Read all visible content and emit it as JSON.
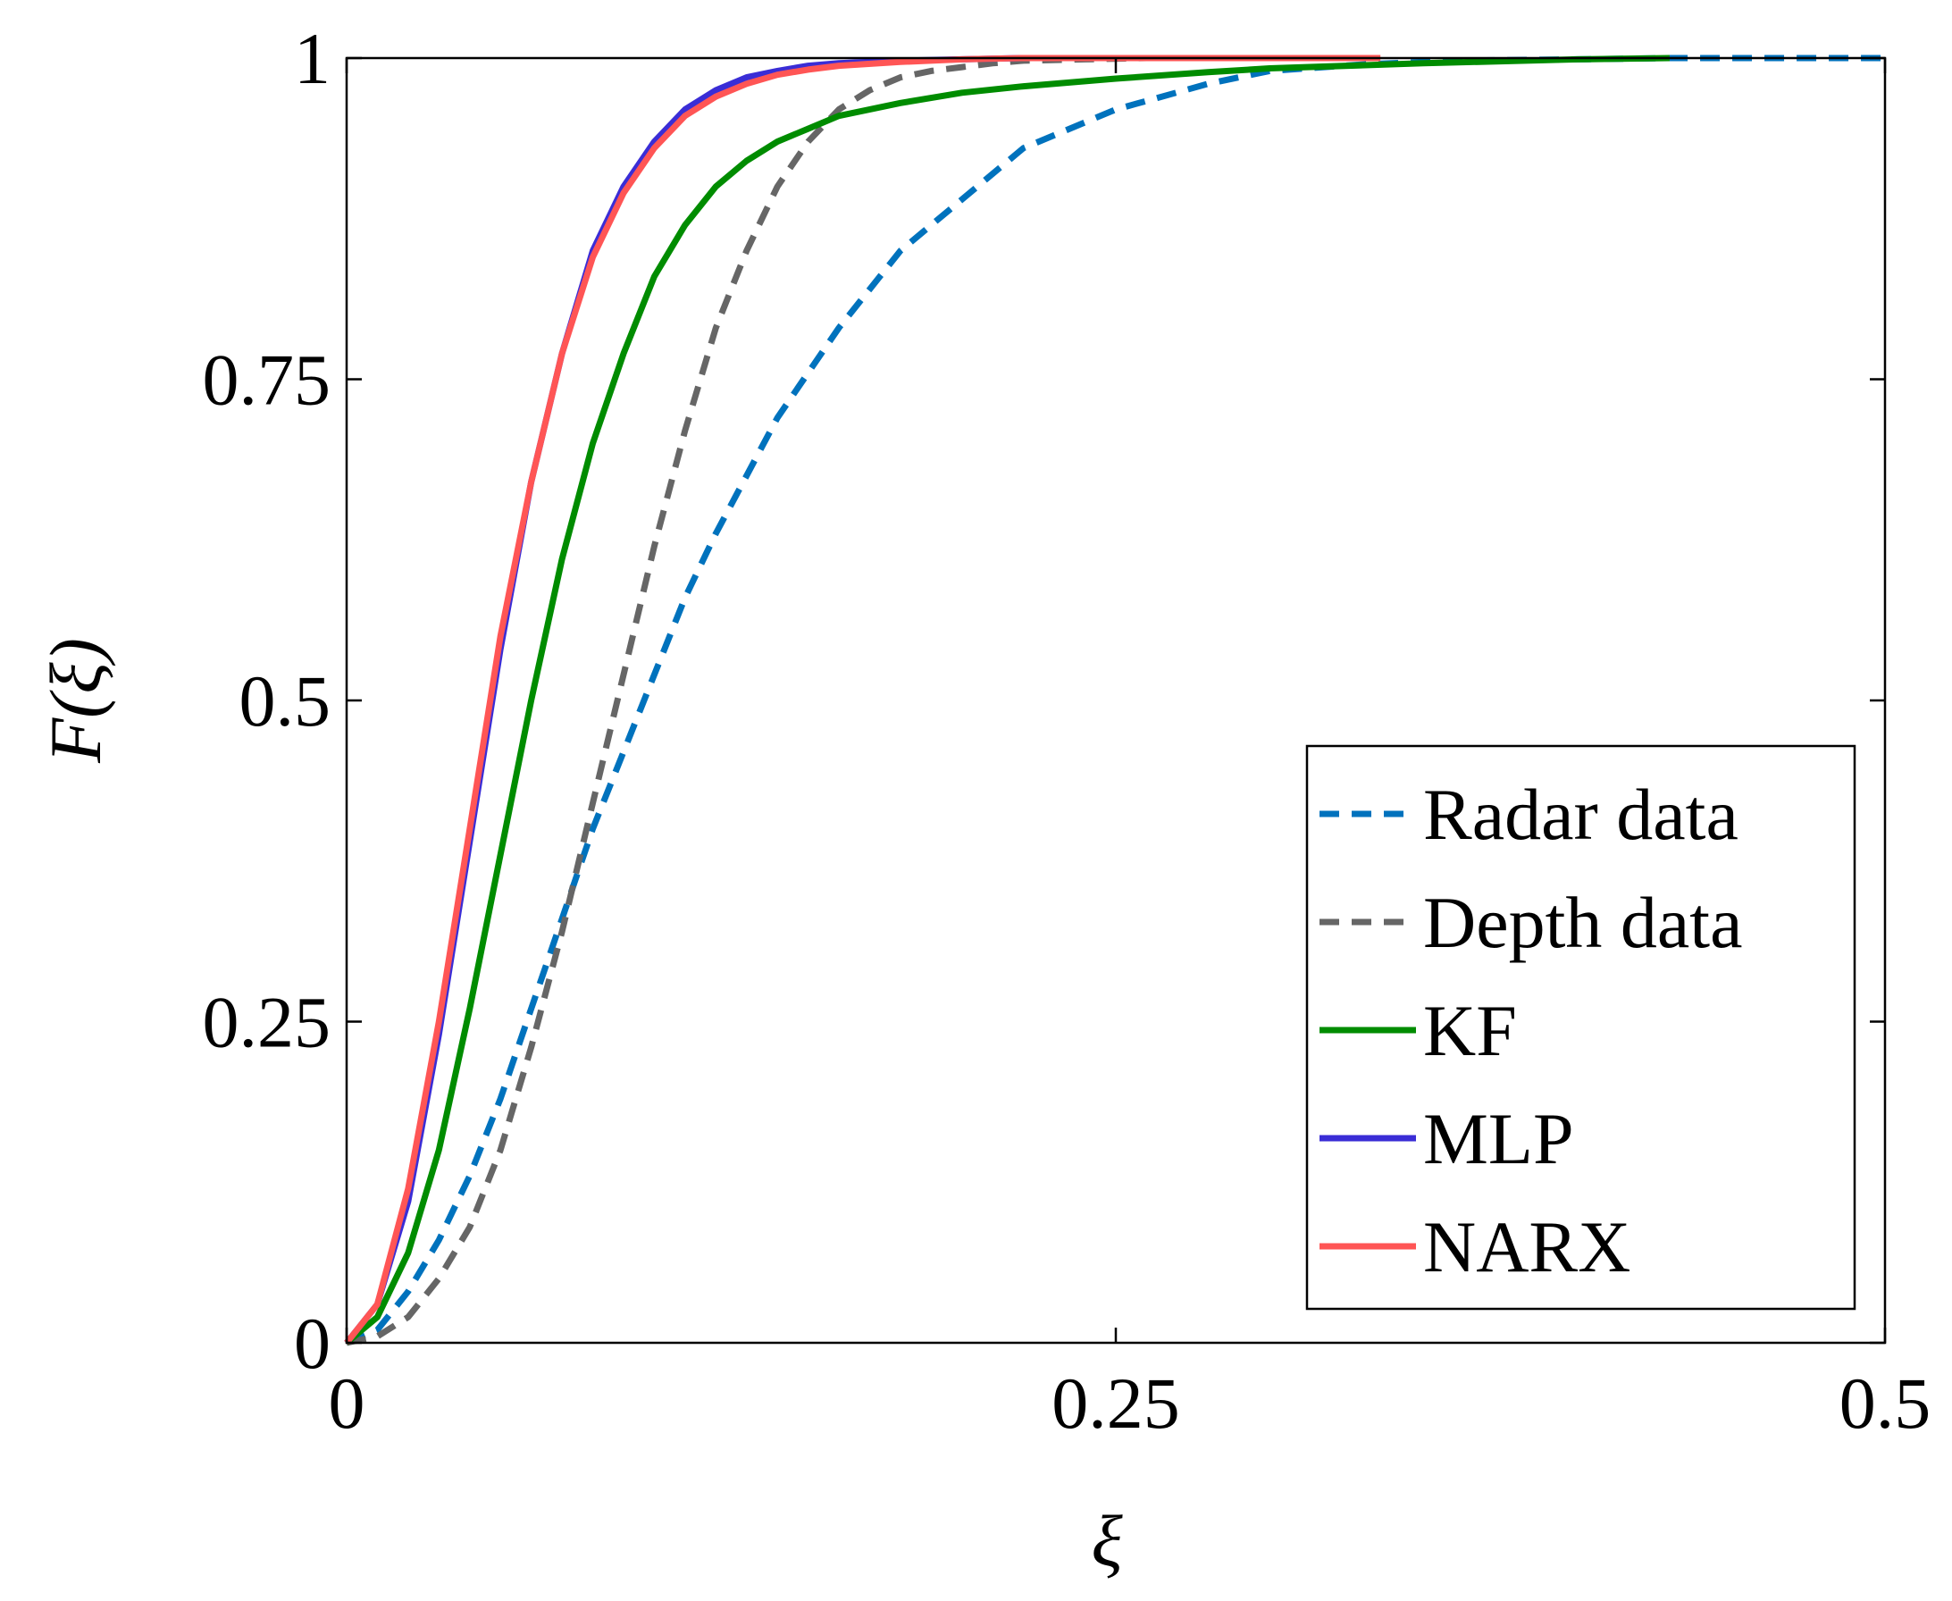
{
  "chart_data": {
    "type": "line",
    "title": "",
    "xlabel": "ξ",
    "ylabel": "F(ξ)",
    "xlim": [
      0,
      0.5
    ],
    "ylim": [
      0,
      1
    ],
    "grid": false,
    "legend_position": "bottom-right",
    "xticks": [
      {
        "value": 0,
        "label": "0"
      },
      {
        "value": 0.25,
        "label": "0.25"
      },
      {
        "value": 0.5,
        "label": "0.5"
      }
    ],
    "yticks": [
      {
        "value": 0,
        "label": "0"
      },
      {
        "value": 0.25,
        "label": "0.25"
      },
      {
        "value": 0.5,
        "label": "0.5"
      },
      {
        "value": 0.75,
        "label": "0.75"
      },
      {
        "value": 1,
        "label": "1"
      }
    ],
    "series": [
      {
        "name": "Radar data",
        "color": "#0072BD",
        "style": "dashed",
        "x": [
          0,
          0.01,
          0.02,
          0.03,
          0.04,
          0.05,
          0.06,
          0.07,
          0.08,
          0.09,
          0.1,
          0.11,
          0.12,
          0.14,
          0.16,
          0.18,
          0.2,
          0.22,
          0.25,
          0.28,
          0.3,
          0.33,
          0.36,
          0.4,
          0.43,
          0.45,
          0.5
        ],
        "y": [
          0,
          0.01,
          0.04,
          0.08,
          0.13,
          0.19,
          0.26,
          0.33,
          0.4,
          0.46,
          0.52,
          0.58,
          0.63,
          0.72,
          0.79,
          0.85,
          0.89,
          0.93,
          0.96,
          0.98,
          0.99,
          0.995,
          0.998,
          0.999,
          1,
          1,
          1
        ]
      },
      {
        "name": "Depth data",
        "color": "#666666",
        "style": "dashed",
        "x": [
          0,
          0.01,
          0.02,
          0.03,
          0.04,
          0.05,
          0.06,
          0.07,
          0.08,
          0.09,
          0.1,
          0.11,
          0.12,
          0.13,
          0.14,
          0.15,
          0.16,
          0.17,
          0.18,
          0.19,
          0.2,
          0.21,
          0.22,
          0.24,
          0.26,
          0.28,
          0.3,
          0.33
        ],
        "y": [
          0,
          0.005,
          0.02,
          0.05,
          0.09,
          0.15,
          0.23,
          0.32,
          0.42,
          0.52,
          0.62,
          0.71,
          0.79,
          0.85,
          0.9,
          0.935,
          0.96,
          0.975,
          0.985,
          0.99,
          0.993,
          0.996,
          0.998,
          0.999,
          1,
          1,
          1,
          1
        ]
      },
      {
        "name": "KF",
        "color": "#008C00",
        "style": "solid",
        "x": [
          0,
          0.01,
          0.02,
          0.03,
          0.04,
          0.05,
          0.06,
          0.07,
          0.08,
          0.09,
          0.1,
          0.11,
          0.12,
          0.13,
          0.14,
          0.15,
          0.16,
          0.18,
          0.2,
          0.22,
          0.25,
          0.28,
          0.3,
          0.35,
          0.4,
          0.43
        ],
        "y": [
          0,
          0.02,
          0.07,
          0.15,
          0.26,
          0.38,
          0.5,
          0.61,
          0.7,
          0.77,
          0.83,
          0.87,
          0.9,
          0.92,
          0.935,
          0.945,
          0.955,
          0.965,
          0.973,
          0.978,
          0.984,
          0.989,
          0.992,
          0.996,
          0.999,
          1
        ]
      },
      {
        "name": "MLP",
        "color": "#3A2DD6",
        "style": "solid",
        "x": [
          0,
          0.01,
          0.02,
          0.03,
          0.04,
          0.05,
          0.06,
          0.07,
          0.08,
          0.09,
          0.1,
          0.11,
          0.12,
          0.13,
          0.14,
          0.15,
          0.16,
          0.18,
          0.2,
          0.22,
          0.25,
          0.28,
          0.3,
          0.33
        ],
        "y": [
          0,
          0.03,
          0.11,
          0.24,
          0.39,
          0.54,
          0.67,
          0.77,
          0.85,
          0.9,
          0.935,
          0.96,
          0.975,
          0.985,
          0.99,
          0.994,
          0.996,
          0.998,
          0.999,
          1,
          1,
          1,
          1,
          1
        ]
      },
      {
        "name": "NARX",
        "color": "#FF5555",
        "style": "solid",
        "x": [
          0,
          0.01,
          0.02,
          0.03,
          0.04,
          0.05,
          0.06,
          0.07,
          0.08,
          0.09,
          0.1,
          0.11,
          0.12,
          0.13,
          0.14,
          0.15,
          0.16,
          0.18,
          0.2,
          0.22,
          0.25,
          0.28,
          0.3,
          0.336
        ],
        "y": [
          0,
          0.03,
          0.12,
          0.25,
          0.4,
          0.55,
          0.67,
          0.77,
          0.845,
          0.895,
          0.93,
          0.955,
          0.97,
          0.98,
          0.987,
          0.991,
          0.994,
          0.997,
          0.999,
          1,
          1,
          1,
          1,
          1
        ]
      }
    ]
  }
}
